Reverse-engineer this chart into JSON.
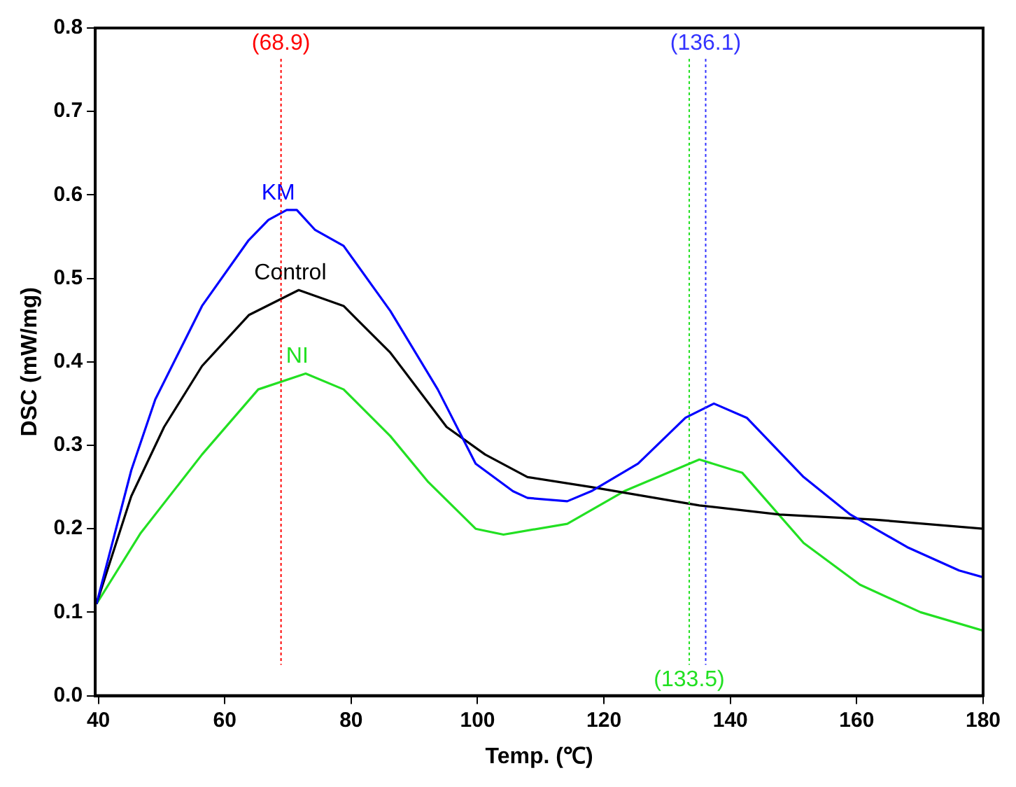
{
  "chart_data": {
    "type": "line",
    "xlabel": "Temp. (℃)",
    "ylabel": "DSC (mW/mg)",
    "xlim": [
      39.5,
      180
    ],
    "xticks": [
      40,
      60,
      80,
      100,
      120,
      140,
      160,
      180
    ],
    "ylim": [
      0,
      0.8
    ],
    "yticks": [
      {
        "value": 0,
        "label": "0.0"
      },
      {
        "value": 0.1,
        "label": "0.1"
      },
      {
        "value": 0.2,
        "label": "0.2"
      },
      {
        "value": 0.3,
        "label": "0.3"
      },
      {
        "value": 0.4,
        "label": "0.4"
      },
      {
        "value": 0.5,
        "label": "0.5"
      },
      {
        "value": 0.6,
        "label": "0.6"
      },
      {
        "value": 0.7,
        "label": "0.7"
      },
      {
        "value": 0.8,
        "label": "0.8"
      }
    ],
    "grid": false,
    "legend": false,
    "marker": "none",
    "line_style": "solid",
    "series": [
      {
        "name": "KM",
        "color": "#0000ff",
        "x": [
          39.7,
          45.2,
          49.0,
          56.4,
          63.7,
          66.9,
          69.8,
          71.4,
          74.3,
          78.8,
          86.2,
          93.7,
          99.7,
          105.6,
          107.9,
          114.2,
          118.0,
          125.4,
          132.9,
          137.4,
          142.6,
          151.6,
          159.0,
          168.0,
          176.2,
          180
        ],
        "values": [
          0.11,
          0.27,
          0.355,
          0.467,
          0.545,
          0.57,
          0.582,
          0.582,
          0.558,
          0.539,
          0.461,
          0.367,
          0.278,
          0.245,
          0.237,
          0.233,
          0.245,
          0.278,
          0.333,
          0.35,
          0.333,
          0.262,
          0.217,
          0.178,
          0.15,
          0.142
        ]
      },
      {
        "name": "Control",
        "color": "#000000",
        "x": [
          39.7,
          45.2,
          50.4,
          56.4,
          63.8,
          71.7,
          78.8,
          86.2,
          95.1,
          101.2,
          107.9,
          118.0,
          135.1,
          147.8,
          162.8,
          180
        ],
        "values": [
          0.11,
          0.239,
          0.322,
          0.395,
          0.456,
          0.486,
          0.467,
          0.411,
          0.322,
          0.289,
          0.262,
          0.25,
          0.228,
          0.217,
          0.211,
          0.2
        ]
      },
      {
        "name": "NI",
        "color": "#22e022",
        "x": [
          39.7,
          46.7,
          56.4,
          65.3,
          72.8,
          78.8,
          86.2,
          92.2,
          99.7,
          104.1,
          114.2,
          123.2,
          135.1,
          141.9,
          151.6,
          160.5,
          170.1,
          180
        ],
        "values": [
          0.11,
          0.195,
          0.289,
          0.367,
          0.386,
          0.367,
          0.311,
          0.256,
          0.2,
          0.193,
          0.206,
          0.245,
          0.283,
          0.267,
          0.183,
          0.133,
          0.1,
          0.078
        ]
      }
    ],
    "ref_lines": [
      {
        "axis": "x",
        "value": 68.9,
        "label": "(68.9)",
        "color": "#ff0000",
        "line_style": "dotted"
      },
      {
        "axis": "x",
        "value": 136.1,
        "label": "(136.1)",
        "color": "#3333ff",
        "line_style": "dotted"
      },
      {
        "axis": "x",
        "value": 133.5,
        "label": "(133.5)",
        "color": "#22e022",
        "line_style": "dotted"
      }
    ]
  }
}
